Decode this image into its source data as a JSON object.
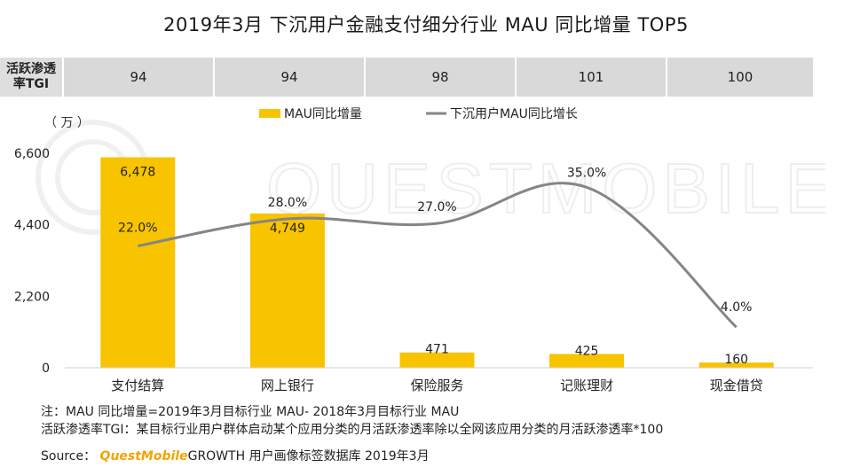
{
  "title": "2019年3月 下沉用户金融支付细分行业 MAU 同比增量 TOP5",
  "tgi": {
    "label": "活跃渗透率TGI",
    "values": [
      "94",
      "94",
      "98",
      "101",
      "100"
    ]
  },
  "colors": {
    "bar": "#f8c400",
    "line": "#858585",
    "tgi_bg": "#d9d9d9"
  },
  "watermark_text": "QUESTMOBILE",
  "chart_data": {
    "type": "bar",
    "categories": [
      "支付结算",
      "网上银行",
      "保险服务",
      "记账理财",
      "现金借贷"
    ],
    "unit_label": "（ 万 ）",
    "ylim": [
      0,
      6600
    ],
    "yticks": [
      0,
      2200,
      4400,
      6600
    ],
    "ytick_labels": [
      "0",
      "2,200",
      "4,400",
      "6,600"
    ],
    "legend_position": "top",
    "grid": false,
    "series": [
      {
        "name": "MAU同比增量",
        "kind": "bar",
        "values": [
          6478,
          4749,
          471,
          425,
          160
        ],
        "labels": [
          "6,478",
          "4,749",
          "471",
          "425",
          "160"
        ]
      },
      {
        "name": "下沉用户MAU同比增长",
        "kind": "line",
        "values": [
          22.0,
          28.0,
          27.0,
          35.0,
          4.0
        ],
        "labels": [
          "22.0%",
          "28.0%",
          "27.0%",
          "35.0%",
          "4.0%"
        ]
      }
    ]
  },
  "notes": [
    "注：MAU 同比增量=2019年3月目标行业 MAU- 2018年3月目标行业 MAU",
    "活跃渗透率TGI：某目标行业用户群体启动某个应用分类的月活跃渗透率除以全网该应用分类的月活跃渗透率*100"
  ],
  "source": {
    "prefix": "Source：",
    "brand": "QuestMobile",
    "rest": "GROWTH 用户画像标签数据库 2019年3月"
  }
}
